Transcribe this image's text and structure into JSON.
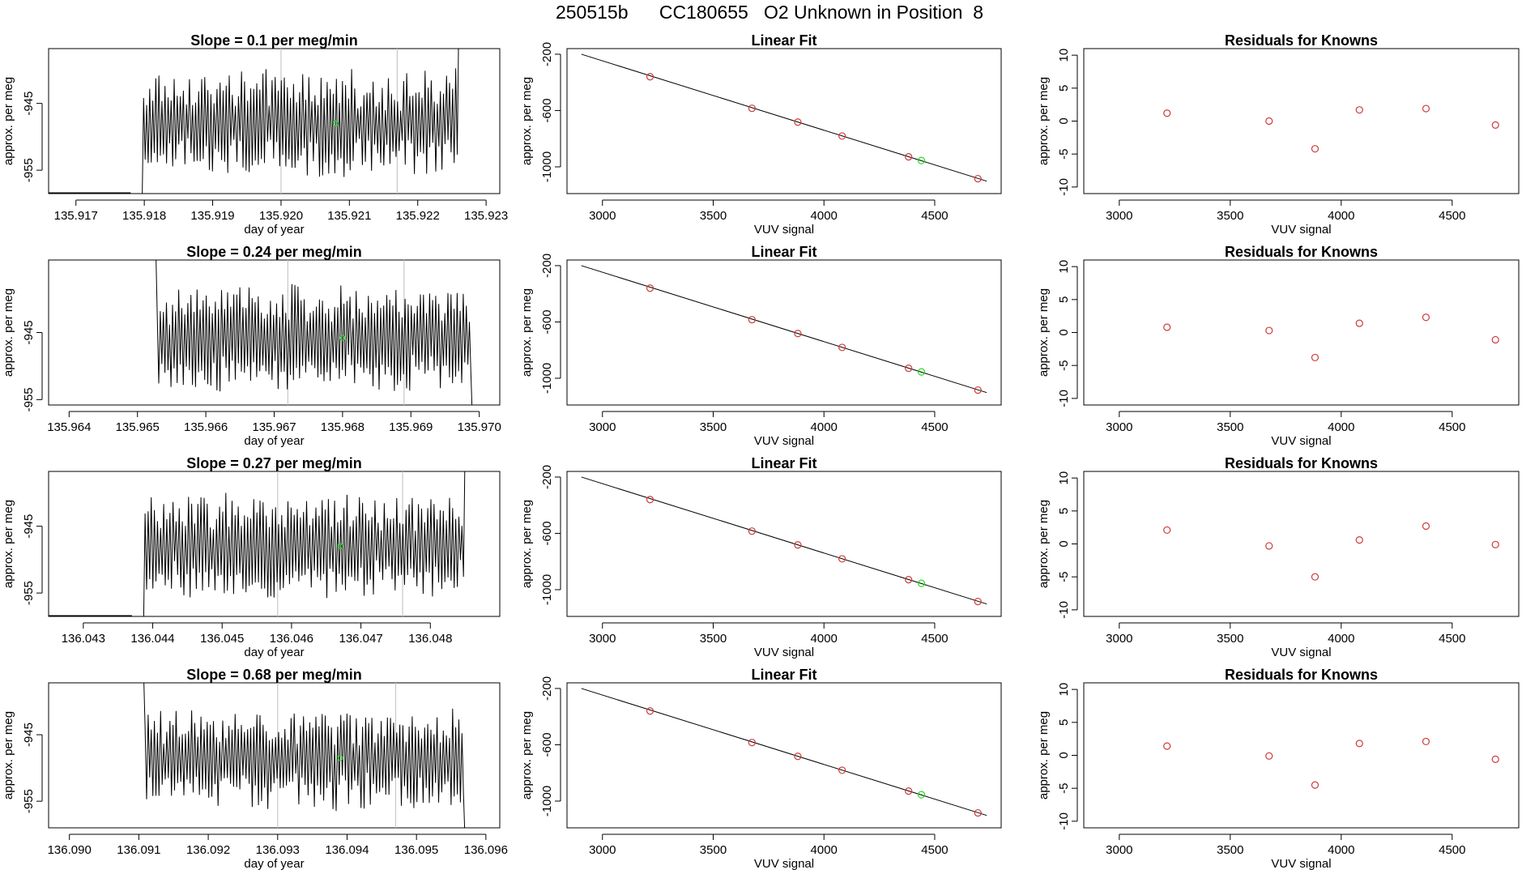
{
  "page_title": "250515b      CC180655   O2 Unknown in Position  8",
  "colors": {
    "trace": "#000000",
    "marker_known": "#cd3a3a",
    "marker_unknown": "#22dd22",
    "guide": "#c8c8c8"
  },
  "chart_data": [
    {
      "type": "line",
      "title": "Slope =  0.1  per meg/min",
      "xlabel": "day of year",
      "ylabel": "approx. per meg",
      "xlim": [
        135.9166,
        135.9232
      ],
      "ylim": [
        -958.5,
        -936.8
      ],
      "xticks": [
        "135.917",
        "135.918",
        "135.919",
        "135.920",
        "135.921",
        "135.922",
        "135.923"
      ],
      "yticks": [
        "-945",
        "-955"
      ],
      "ref_lines_x": [
        135.92,
        135.9217
      ],
      "series_start": 135.9179,
      "series_end": 135.9226,
      "marker": [
        135.9208,
        -948.0
      ],
      "pre_flat": {
        "y": -958.5,
        "x": [
          135.9166,
          135.9178
        ]
      }
    },
    {
      "type": "scatter",
      "title": "Linear Fit",
      "xlabel": "VUV signal",
      "ylabel": "approx. per meg",
      "xlim": [
        2840,
        4800
      ],
      "ylim": [
        -1190,
        -160
      ],
      "xticks": [
        "3000",
        "3500",
        "4000",
        "4500"
      ],
      "yticks": [
        "-200",
        "-600",
        "-1000"
      ],
      "knowns": [
        [
          3215,
          -360
        ],
        [
          3675,
          -584
        ],
        [
          3882,
          -682
        ],
        [
          4082,
          -781
        ],
        [
          4382,
          -929
        ],
        [
          4695,
          -1084
        ]
      ],
      "unknown": [
        4440,
        -955
      ],
      "fit_line": [
        [
          2905,
          -200
        ],
        [
          4735,
          -1102
        ]
      ]
    },
    {
      "type": "scatter",
      "title": "Residuals for Knowns",
      "xlabel": "VUV signal",
      "ylabel": "approx. per meg",
      "xlim": [
        2840,
        4800
      ],
      "ylim": [
        -11,
        11
      ],
      "xticks": [
        "3000",
        "3500",
        "4000",
        "4500"
      ],
      "yticks": [
        "10",
        "5",
        "0",
        "-5",
        "-10"
      ],
      "points": [
        [
          3215,
          1.2
        ],
        [
          3675,
          0.0
        ],
        [
          3882,
          -4.2
        ],
        [
          4082,
          1.7
        ],
        [
          4382,
          1.9
        ],
        [
          4695,
          -0.6
        ]
      ]
    },
    {
      "type": "line",
      "title": "Slope =  0.24  per meg/min",
      "xlabel": "day of year",
      "ylabel": "approx. per meg",
      "xlim": [
        135.9637,
        135.9703
      ],
      "ylim": [
        -955.8,
        -934.2
      ],
      "xticks": [
        "135.964",
        "135.965",
        "135.966",
        "135.967",
        "135.968",
        "135.969",
        "135.970"
      ],
      "yticks": [
        "-945",
        "-955"
      ],
      "ref_lines_x": [
        135.9672,
        135.9689
      ],
      "series_start": 135.9652,
      "series_end": 135.9699,
      "marker": [
        135.968,
        -945.8
      ]
    },
    {
      "type": "scatter",
      "title": "Linear Fit",
      "xlabel": "VUV signal",
      "ylabel": "approx. per meg",
      "xlim": [
        2840,
        4800
      ],
      "ylim": [
        -1190,
        -160
      ],
      "xticks": [
        "3000",
        "3500",
        "4000",
        "4500"
      ],
      "yticks": [
        "-200",
        "-600",
        "-1000"
      ],
      "knowns": [
        [
          3215,
          -360
        ],
        [
          3675,
          -584
        ],
        [
          3882,
          -682
        ],
        [
          4082,
          -781
        ],
        [
          4382,
          -929
        ],
        [
          4695,
          -1084
        ]
      ],
      "unknown": [
        4440,
        -955
      ],
      "fit_line": [
        [
          2905,
          -200
        ],
        [
          4735,
          -1102
        ]
      ]
    },
    {
      "type": "scatter",
      "title": "Residuals for Knowns",
      "xlabel": "VUV signal",
      "ylabel": "approx. per meg",
      "xlim": [
        2840,
        4800
      ],
      "ylim": [
        -11,
        11
      ],
      "points": [
        [
          3215,
          0.8
        ],
        [
          3675,
          0.3
        ],
        [
          3882,
          -3.8
        ],
        [
          4082,
          1.4
        ],
        [
          4382,
          2.3
        ],
        [
          4695,
          -1.1
        ]
      ],
      "xticks": [
        "3000",
        "3500",
        "4000",
        "4500"
      ],
      "yticks": [
        "10",
        "5",
        "0",
        "-5",
        "-10"
      ]
    },
    {
      "type": "line",
      "title": "Slope =  0.27  per meg/min",
      "xlabel": "day of year",
      "ylabel": "approx. per meg",
      "xlim": [
        136.0425,
        136.049
      ],
      "ylim": [
        -958.5,
        -936.8
      ],
      "xticks": [
        "136.043",
        "136.044",
        "136.045",
        "136.046",
        "136.047",
        "136.048"
      ],
      "yticks": [
        "-945",
        "-955"
      ],
      "ref_lines_x": [
        136.0458,
        136.0476
      ],
      "series_start": 136.0438,
      "series_end": 136.0485,
      "marker": [
        136.0467,
        -948.0
      ],
      "pre_flat": {
        "y": -958.5,
        "x": [
          136.0425,
          136.0437
        ]
      }
    },
    {
      "type": "scatter",
      "title": "Linear Fit",
      "xlabel": "VUV signal",
      "ylabel": "approx. per meg",
      "xlim": [
        2840,
        4800
      ],
      "ylim": [
        -1190,
        -160
      ],
      "xticks": [
        "3000",
        "3500",
        "4000",
        "4500"
      ],
      "yticks": [
        "-200",
        "-600",
        "-1000"
      ],
      "knowns": [
        [
          3215,
          -360
        ],
        [
          3675,
          -584
        ],
        [
          3882,
          -682
        ],
        [
          4082,
          -781
        ],
        [
          4382,
          -929
        ],
        [
          4695,
          -1084
        ]
      ],
      "unknown": [
        4440,
        -955
      ],
      "fit_line": [
        [
          2905,
          -200
        ],
        [
          4735,
          -1102
        ]
      ]
    },
    {
      "type": "scatter",
      "title": "Residuals for Knowns",
      "xlabel": "VUV signal",
      "ylabel": "approx. per meg",
      "xlim": [
        2840,
        4800
      ],
      "ylim": [
        -11,
        11
      ],
      "points": [
        [
          3215,
          2.1
        ],
        [
          3675,
          -0.3
        ],
        [
          3882,
          -5.0
        ],
        [
          4082,
          0.6
        ],
        [
          4382,
          2.7
        ],
        [
          4695,
          -0.1
        ]
      ],
      "xticks": [
        "3000",
        "3500",
        "4000",
        "4500"
      ],
      "yticks": [
        "10",
        "5",
        "0",
        "-5",
        "-10"
      ]
    },
    {
      "type": "line",
      "title": "Slope =  0.68  per meg/min",
      "xlabel": "day of year",
      "ylabel": "approx. per meg",
      "xlim": [
        136.0897,
        136.0962
      ],
      "ylim": [
        -959.0,
        -937.2
      ],
      "xticks": [
        "136.090",
        "136.091",
        "136.092",
        "136.093",
        "136.094",
        "136.095",
        "136.096"
      ],
      "yticks": [
        "-945",
        "-955"
      ],
      "ref_lines_x": [
        136.093,
        136.0947
      ],
      "series_start": 136.091,
      "series_end": 136.0957,
      "marker": [
        136.0939,
        -948.5
      ]
    },
    {
      "type": "scatter",
      "title": "Linear Fit",
      "xlabel": "VUV signal",
      "ylabel": "approx. per meg",
      "xlim": [
        2840,
        4800
      ],
      "ylim": [
        -1190,
        -160
      ],
      "xticks": [
        "3000",
        "3500",
        "4000",
        "4500"
      ],
      "yticks": [
        "-200",
        "-600",
        "-1000"
      ],
      "knowns": [
        [
          3215,
          -360
        ],
        [
          3675,
          -584
        ],
        [
          3882,
          -682
        ],
        [
          4082,
          -781
        ],
        [
          4382,
          -929
        ],
        [
          4695,
          -1084
        ]
      ],
      "unknown": [
        4440,
        -955
      ],
      "fit_line": [
        [
          2905,
          -200
        ],
        [
          4735,
          -1102
        ]
      ]
    },
    {
      "type": "scatter",
      "title": "Residuals for Knowns",
      "xlabel": "VUV signal",
      "ylabel": "approx. per meg",
      "xlim": [
        2840,
        4800
      ],
      "ylim": [
        -11,
        11
      ],
      "points": [
        [
          3215,
          1.4
        ],
        [
          3675,
          -0.1
        ],
        [
          3882,
          -4.5
        ],
        [
          4082,
          1.8
        ],
        [
          4382,
          2.1
        ],
        [
          4695,
          -0.6
        ]
      ],
      "xticks": [
        "3000",
        "3500",
        "4000",
        "4500"
      ],
      "yticks": [
        "10",
        "5",
        "0",
        "-5",
        "-10"
      ]
    }
  ]
}
